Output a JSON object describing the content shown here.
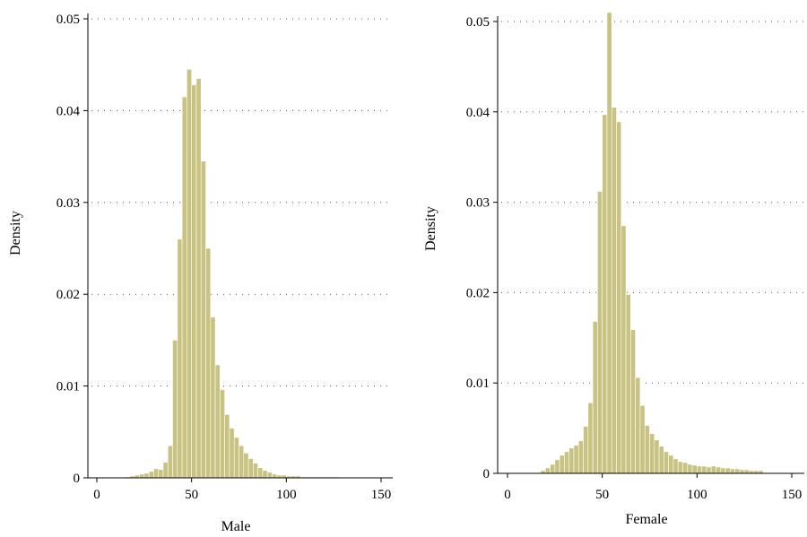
{
  "chart_data": [
    {
      "type": "bar",
      "xlabel": "Male",
      "ylabel": "Density",
      "xlim": [
        0,
        155
      ],
      "ylim": [
        0,
        0.05
      ],
      "xticks": [
        0,
        50,
        100,
        150
      ],
      "yticks": [
        0,
        0.01,
        0.02,
        0.03,
        0.04,
        0.05
      ],
      "ytick_labels": [
        "0",
        "0.01",
        "0.02",
        "0.03",
        "0.04",
        "0.05"
      ],
      "grid": "horizontal-dotted",
      "bar_color": "#c8c382",
      "bin_width": 2.5,
      "bins_start": [
        15,
        17.5,
        20,
        22.5,
        25,
        27.5,
        30,
        32.5,
        35,
        37.5,
        40,
        42.5,
        45,
        47.5,
        50,
        52.5,
        55,
        57.5,
        60,
        62.5,
        65,
        67.5,
        70,
        72.5,
        75,
        77.5,
        80,
        82.5,
        85,
        87.5,
        90,
        92.5,
        95,
        97.5,
        100,
        102.5,
        105,
        107.5,
        110,
        112.5,
        115,
        117.5,
        120,
        122.5,
        125,
        127.5,
        130,
        132.5,
        135
      ],
      "values": [
        0.0001,
        0.0002,
        0.0003,
        0.0004,
        0.0005,
        0.0007,
        0.001,
        0.0009,
        0.0017,
        0.0035,
        0.015,
        0.026,
        0.0415,
        0.0445,
        0.0428,
        0.0435,
        0.0345,
        0.025,
        0.0175,
        0.0123,
        0.0096,
        0.0069,
        0.0054,
        0.0044,
        0.0035,
        0.0027,
        0.0021,
        0.0016,
        0.0011,
        0.0008,
        0.0006,
        0.0004,
        0.0003,
        0.0003,
        0.0002,
        0.0002,
        0.0002,
        0.0001,
        0.0001,
        0.0001,
        0.0001,
        0.0001,
        0.0001,
        0.0001,
        0.0001,
        5e-05,
        5e-05,
        5e-05,
        5e-05
      ]
    },
    {
      "type": "bar",
      "xlabel": "Female",
      "ylabel": "Density",
      "xlim": [
        0,
        155
      ],
      "ylim": [
        0,
        0.05
      ],
      "xticks": [
        0,
        50,
        100,
        150
      ],
      "yticks": [
        0,
        0.01,
        0.02,
        0.03,
        0.04,
        0.05
      ],
      "ytick_labels": [
        "0",
        "0.01",
        "0.02",
        "0.03",
        "0.04",
        "0.05"
      ],
      "grid": "horizontal-dotted",
      "bar_color": "#c8c382",
      "bin_width": 2.5,
      "bins_start": [
        17.5,
        20,
        22.5,
        25,
        27.5,
        30,
        32.5,
        35,
        37.5,
        40,
        42.5,
        45,
        47.5,
        50,
        52.5,
        55,
        57.5,
        60,
        62.5,
        65,
        67.5,
        70,
        72.5,
        75,
        77.5,
        80,
        82.5,
        85,
        87.5,
        90,
        92.5,
        95,
        97.5,
        100,
        102.5,
        105,
        107.5,
        110,
        112.5,
        115,
        117.5,
        120,
        122.5,
        125,
        127.5,
        130,
        132.5
      ],
      "values": [
        0.0003,
        0.0006,
        0.001,
        0.0015,
        0.002,
        0.0024,
        0.0028,
        0.0031,
        0.0036,
        0.0052,
        0.0078,
        0.0168,
        0.0312,
        0.0397,
        0.051,
        0.0405,
        0.0389,
        0.0274,
        0.0198,
        0.0159,
        0.0106,
        0.0075,
        0.0053,
        0.0044,
        0.0037,
        0.003,
        0.0024,
        0.002,
        0.0016,
        0.0013,
        0.0012,
        0.001,
        0.0009,
        0.0008,
        0.0008,
        0.0007,
        0.0008,
        0.0007,
        0.0006,
        0.0006,
        0.0005,
        0.0005,
        0.0004,
        0.0004,
        0.0003,
        0.0003,
        0.0003
      ]
    }
  ]
}
